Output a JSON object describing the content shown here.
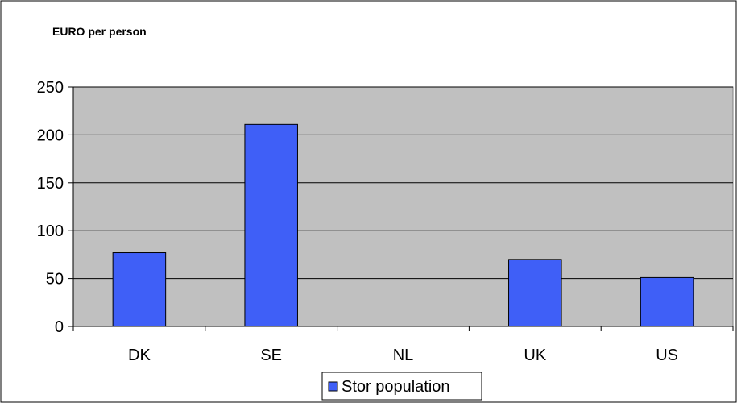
{
  "chart_data": {
    "type": "bar",
    "title": "",
    "ylabel": "EURO per person",
    "xlabel": "",
    "categories": [
      "DK",
      "SE",
      "NL",
      "UK",
      "US"
    ],
    "series": [
      {
        "name": "Stor population",
        "values": [
          77,
          211,
          0,
          70,
          51
        ],
        "color": "#3f5ff7"
      }
    ],
    "ylim": [
      0,
      250
    ],
    "yticks": [
      0,
      50,
      100,
      150,
      200,
      250
    ],
    "grid": true,
    "plot_background": "#c0c0c0",
    "legend_position": "bottom"
  }
}
